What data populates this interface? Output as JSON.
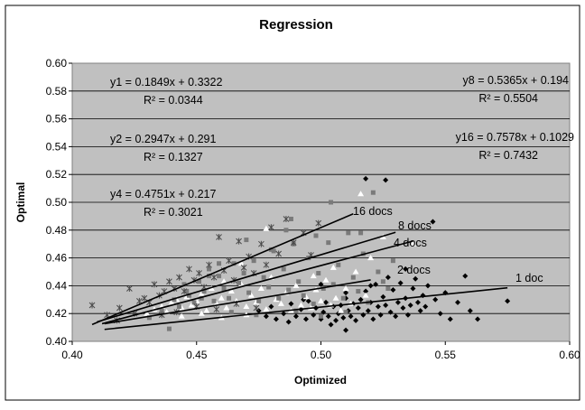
{
  "chart_data": {
    "type": "scatter",
    "title": "Regression",
    "xlabel": "Optimized",
    "ylabel": "Optimal",
    "xlim": [
      0.4,
      0.6
    ],
    "ylim": [
      0.4,
      0.6
    ],
    "x_ticks": [
      "0.40",
      "0.45",
      "0.50",
      "0.55",
      "0.60"
    ],
    "y_ticks": [
      "0.40",
      "0.42",
      "0.44",
      "0.46",
      "0.48",
      "0.50",
      "0.52",
      "0.54",
      "0.56",
      "0.58",
      "0.60"
    ],
    "grid": true,
    "background": "#c0c0c0",
    "series": [
      {
        "marker": "diamond",
        "color": "#000000",
        "points": [
          [
            0.475,
            0.422
          ],
          [
            0.478,
            0.418
          ],
          [
            0.48,
            0.425
          ],
          [
            0.482,
            0.416
          ],
          [
            0.485,
            0.42
          ],
          [
            0.487,
            0.414
          ],
          [
            0.488,
            0.427
          ],
          [
            0.49,
            0.418
          ],
          [
            0.492,
            0.423
          ],
          [
            0.494,
            0.416
          ],
          [
            0.495,
            0.429
          ],
          [
            0.497,
            0.419
          ],
          [
            0.498,
            0.424
          ],
          [
            0.5,
            0.416
          ],
          [
            0.501,
            0.421
          ],
          [
            0.502,
            0.428
          ],
          [
            0.503,
            0.418
          ],
          [
            0.505,
            0.425
          ],
          [
            0.506,
            0.415
          ],
          [
            0.507,
            0.42
          ],
          [
            0.508,
            0.426
          ],
          [
            0.509,
            0.417
          ],
          [
            0.51,
            0.431
          ],
          [
            0.511,
            0.422
          ],
          [
            0.512,
            0.418
          ],
          [
            0.513,
            0.427
          ],
          [
            0.514,
            0.415
          ],
          [
            0.515,
            0.424
          ],
          [
            0.516,
            0.43
          ],
          [
            0.517,
            0.419
          ],
          [
            0.518,
            0.436
          ],
          [
            0.518,
            0.517
          ],
          [
            0.519,
            0.422
          ],
          [
            0.52,
            0.428
          ],
          [
            0.521,
            0.416
          ],
          [
            0.522,
            0.441
          ],
          [
            0.523,
            0.425
          ],
          [
            0.524,
            0.419
          ],
          [
            0.525,
            0.432
          ],
          [
            0.526,
            0.426
          ],
          [
            0.526,
            0.516
          ],
          [
            0.527,
            0.446
          ],
          [
            0.528,
            0.421
          ],
          [
            0.529,
            0.437
          ],
          [
            0.53,
            0.418
          ],
          [
            0.531,
            0.428
          ],
          [
            0.532,
            0.442
          ],
          [
            0.533,
            0.424
          ],
          [
            0.534,
            0.431
          ],
          [
            0.535,
            0.419
          ],
          [
            0.536,
            0.426
          ],
          [
            0.537,
            0.438
          ],
          [
            0.538,
            0.445
          ],
          [
            0.539,
            0.428
          ],
          [
            0.54,
            0.422
          ],
          [
            0.541,
            0.433
          ],
          [
            0.542,
            0.425
          ],
          [
            0.543,
            0.44
          ],
          [
            0.545,
            0.486
          ],
          [
            0.546,
            0.43
          ],
          [
            0.548,
            0.42
          ],
          [
            0.55,
            0.435
          ],
          [
            0.552,
            0.416
          ],
          [
            0.555,
            0.428
          ],
          [
            0.558,
            0.447
          ],
          [
            0.56,
            0.422
          ],
          [
            0.563,
            0.416
          ],
          [
            0.575,
            0.429
          ],
          [
            0.5,
            0.441
          ],
          [
            0.52,
            0.44
          ],
          [
            0.534,
            0.452
          ],
          [
            0.51,
            0.435
          ],
          [
            0.493,
            0.43
          ],
          [
            0.504,
            0.412
          ],
          [
            0.51,
            0.408
          ]
        ]
      },
      {
        "marker": "triangle",
        "color": "#ffffff",
        "points": [
          [
            0.43,
            0.42
          ],
          [
            0.433,
            0.423
          ],
          [
            0.436,
            0.425
          ],
          [
            0.438,
            0.421
          ],
          [
            0.44,
            0.428
          ],
          [
            0.442,
            0.43
          ],
          [
            0.444,
            0.424
          ],
          [
            0.446,
            0.432
          ],
          [
            0.448,
            0.426
          ],
          [
            0.45,
            0.429
          ],
          [
            0.452,
            0.434
          ],
          [
            0.454,
            0.422
          ],
          [
            0.456,
            0.438
          ],
          [
            0.458,
            0.427
          ],
          [
            0.46,
            0.431
          ],
          [
            0.462,
            0.424
          ],
          [
            0.464,
            0.436
          ],
          [
            0.466,
            0.429
          ],
          [
            0.468,
            0.441
          ],
          [
            0.47,
            0.425
          ],
          [
            0.472,
            0.433
          ],
          [
            0.474,
            0.428
          ],
          [
            0.476,
            0.438
          ],
          [
            0.478,
            0.423
          ],
          [
            0.48,
            0.446
          ],
          [
            0.482,
            0.43
          ],
          [
            0.484,
            0.427
          ],
          [
            0.486,
            0.435
          ],
          [
            0.488,
            0.422
          ],
          [
            0.49,
            0.44
          ],
          [
            0.492,
            0.426
          ],
          [
            0.494,
            0.432
          ],
          [
            0.496,
            0.424
          ],
          [
            0.498,
            0.437
          ],
          [
            0.5,
            0.429
          ],
          [
            0.502,
            0.444
          ],
          [
            0.504,
            0.426
          ],
          [
            0.506,
            0.431
          ],
          [
            0.508,
            0.422
          ],
          [
            0.51,
            0.438
          ],
          [
            0.512,
            0.427
          ],
          [
            0.514,
            0.45
          ],
          [
            0.516,
            0.506
          ],
          [
            0.518,
            0.433
          ],
          [
            0.525,
            0.475
          ],
          [
            0.537,
            0.47
          ],
          [
            0.52,
            0.46
          ],
          [
            0.468,
            0.456
          ],
          [
            0.461,
            0.443
          ],
          [
            0.478,
            0.481
          ],
          [
            0.497,
            0.447
          ],
          [
            0.505,
            0.453
          ],
          [
            0.444,
            0.418
          ],
          [
            0.452,
            0.42
          ],
          [
            0.46,
            0.417
          ],
          [
            0.47,
            0.419
          ]
        ]
      },
      {
        "marker": "square",
        "color": "#7a7a7a",
        "points": [
          [
            0.431,
            0.417
          ],
          [
            0.436,
            0.422
          ],
          [
            0.439,
            0.409
          ],
          [
            0.441,
            0.43
          ],
          [
            0.443,
            0.425
          ],
          [
            0.445,
            0.441
          ],
          [
            0.447,
            0.433
          ],
          [
            0.449,
            0.428
          ],
          [
            0.451,
            0.443
          ],
          [
            0.453,
            0.436
          ],
          [
            0.455,
            0.452
          ],
          [
            0.457,
            0.429
          ],
          [
            0.459,
            0.447
          ],
          [
            0.461,
            0.438
          ],
          [
            0.463,
            0.431
          ],
          [
            0.465,
            0.456
          ],
          [
            0.467,
            0.442
          ],
          [
            0.469,
            0.449
          ],
          [
            0.471,
            0.435
          ],
          [
            0.473,
            0.458
          ],
          [
            0.475,
            0.429
          ],
          [
            0.477,
            0.446
          ],
          [
            0.479,
            0.439
          ],
          [
            0.481,
            0.465
          ],
          [
            0.483,
            0.431
          ],
          [
            0.485,
            0.452
          ],
          [
            0.487,
            0.437
          ],
          [
            0.489,
            0.47
          ],
          [
            0.491,
            0.443
          ],
          [
            0.493,
            0.433
          ],
          [
            0.495,
            0.46
          ],
          [
            0.497,
            0.427
          ],
          [
            0.499,
            0.449
          ],
          [
            0.501,
            0.438
          ],
          [
            0.503,
            0.471
          ],
          [
            0.505,
            0.441
          ],
          [
            0.507,
            0.455
          ],
          [
            0.509,
            0.431
          ],
          [
            0.511,
            0.478
          ],
          [
            0.513,
            0.446
          ],
          [
            0.515,
            0.436
          ],
          [
            0.517,
            0.463
          ],
          [
            0.519,
            0.428
          ],
          [
            0.521,
            0.507
          ],
          [
            0.523,
            0.45
          ],
          [
            0.525,
            0.443
          ],
          [
            0.527,
            0.438
          ],
          [
            0.529,
            0.458
          ],
          [
            0.48,
            0.466
          ],
          [
            0.47,
            0.473
          ],
          [
            0.459,
            0.456
          ],
          [
            0.498,
            0.476
          ],
          [
            0.486,
            0.48
          ],
          [
            0.452,
            0.431
          ],
          [
            0.446,
            0.436
          ],
          [
            0.464,
            0.421
          ],
          [
            0.474,
            0.419
          ],
          [
            0.49,
            0.422
          ],
          [
            0.5,
            0.418
          ],
          [
            0.51,
            0.421
          ],
          [
            0.488,
            0.488
          ],
          [
            0.516,
            0.478
          ],
          [
            0.504,
            0.5
          ],
          [
            0.455,
            0.447
          ]
        ]
      },
      {
        "marker": "star",
        "color": "#4a4a4a",
        "points": [
          [
            0.408,
            0.426
          ],
          [
            0.414,
            0.419
          ],
          [
            0.419,
            0.424
          ],
          [
            0.423,
            0.438
          ],
          [
            0.427,
            0.429
          ],
          [
            0.429,
            0.431
          ],
          [
            0.431,
            0.428
          ],
          [
            0.433,
            0.441
          ],
          [
            0.435,
            0.433
          ],
          [
            0.437,
            0.436
          ],
          [
            0.439,
            0.443
          ],
          [
            0.441,
            0.438
          ],
          [
            0.443,
            0.446
          ],
          [
            0.445,
            0.436
          ],
          [
            0.447,
            0.452
          ],
          [
            0.449,
            0.444
          ],
          [
            0.451,
            0.449
          ],
          [
            0.453,
            0.439
          ],
          [
            0.455,
            0.455
          ],
          [
            0.457,
            0.446
          ],
          [
            0.459,
            0.475
          ],
          [
            0.461,
            0.451
          ],
          [
            0.463,
            0.458
          ],
          [
            0.465,
            0.444
          ],
          [
            0.467,
            0.472
          ],
          [
            0.469,
            0.453
          ],
          [
            0.471,
            0.461
          ],
          [
            0.473,
            0.449
          ],
          [
            0.476,
            0.47
          ],
          [
            0.478,
            0.455
          ],
          [
            0.48,
            0.482
          ],
          [
            0.483,
            0.463
          ],
          [
            0.486,
            0.488
          ],
          [
            0.489,
            0.471
          ],
          [
            0.493,
            0.478
          ],
          [
            0.496,
            0.462
          ],
          [
            0.499,
            0.485
          ],
          [
            0.442,
            0.421
          ],
          [
            0.45,
            0.425
          ],
          [
            0.458,
            0.423
          ],
          [
            0.466,
            0.427
          ],
          [
            0.474,
            0.424
          ],
          [
            0.436,
            0.419
          ],
          [
            0.425,
            0.42
          ],
          [
            0.418,
            0.415
          ]
        ]
      }
    ],
    "trendlines": [
      {
        "label": "16 docs",
        "x": [
          0.408,
          0.513
        ],
        "y": [
          0.4121,
          0.4917
        ]
      },
      {
        "label": "8 docs",
        "x": [
          0.41,
          0.53
        ],
        "y": [
          0.414,
          0.4784
        ]
      },
      {
        "label": "4 docs",
        "x": [
          0.412,
          0.537
        ],
        "y": [
          0.4127,
          0.4721
        ]
      },
      {
        "label": "2 docs",
        "x": [
          0.413,
          0.52
        ],
        "y": [
          0.4127,
          0.4442
        ]
      },
      {
        "label": "1 doc",
        "x": [
          0.413,
          0.575
        ],
        "y": [
          0.4086,
          0.4385
        ]
      }
    ],
    "equations": [
      {
        "eq": "y1 = 0.1849x + 0.3322",
        "r2": "R² = 0.0344"
      },
      {
        "eq": "y2 = 0.2947x + 0.291",
        "r2": "R² = 0.1327"
      },
      {
        "eq": "y4 = 0.4751x + 0.217",
        "r2": "R² = 0.3021"
      },
      {
        "eq": "y8 = 0.5365x + 0.194",
        "r2": "R² = 0.5504"
      },
      {
        "eq": "y16 = 0.7578x + 0.1029",
        "r2": "R² = 0.7432"
      }
    ]
  }
}
